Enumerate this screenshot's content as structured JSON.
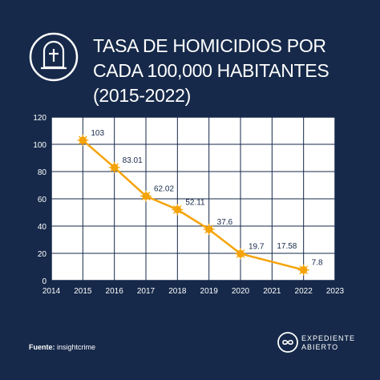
{
  "title": "TASA DE HOMICIDIOS POR CADA 100,000 HABITANTES (2015-2022)",
  "footer": {
    "label": "Fuente:",
    "source": "insightcrime"
  },
  "brand": {
    "line1": "EXPEDIENTE",
    "line2": "ABIERTO"
  },
  "icons": {
    "header": "tombstone-icon",
    "brand": "infinity-logo-icon"
  },
  "colors": {
    "background": "#16294a",
    "line": "#f5a30a",
    "grid": "#16294a",
    "plot_bg": "#ffffff"
  },
  "chart_data": {
    "type": "line",
    "x": [
      2015,
      2016,
      2017,
      2018,
      2019,
      2020,
      2022
    ],
    "values": [
      103,
      83.01,
      62.02,
      52.11,
      37.6,
      19.7,
      7.8
    ],
    "value_labels": [
      "103",
      "83.01",
      "62.02",
      "52.11",
      "37.6",
      "19.7",
      "7.8"
    ],
    "extra_annotations": [
      {
        "text": "17.58",
        "x": 2021,
        "y": 17.58
      }
    ],
    "xticks": [
      "2014",
      "2015",
      "2016",
      "2017",
      "2018",
      "2019",
      "2020",
      "2021",
      "2022",
      "2023"
    ],
    "yticks": [
      "0",
      "20",
      "40",
      "60",
      "80",
      "100",
      "120"
    ],
    "xlim": [
      2014,
      2023
    ],
    "ylim": [
      0,
      120
    ],
    "grid": true,
    "legend": "none"
  }
}
